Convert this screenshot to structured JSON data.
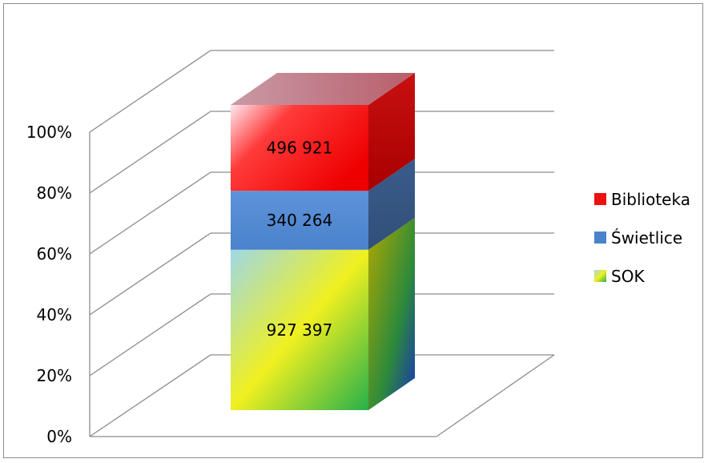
{
  "chart_data": {
    "type": "bar",
    "stacked": "percent",
    "three_d": true,
    "categories": [
      ""
    ],
    "series": [
      {
        "name": "SOK",
        "values": [
          927397
        ],
        "label": "927 397"
      },
      {
        "name": "Świetlice",
        "values": [
          340264
        ],
        "label": "340 264"
      },
      {
        "name": "Biblioteka",
        "values": [
          496921
        ],
        "label": "496 921"
      }
    ],
    "y_ticks": [
      "0%",
      "20%",
      "40%",
      "60%",
      "80%",
      "100%"
    ],
    "ylim": [
      0,
      100
    ],
    "grid": true,
    "legend_position": "right",
    "title": "",
    "xlabel": "",
    "ylabel": ""
  }
}
